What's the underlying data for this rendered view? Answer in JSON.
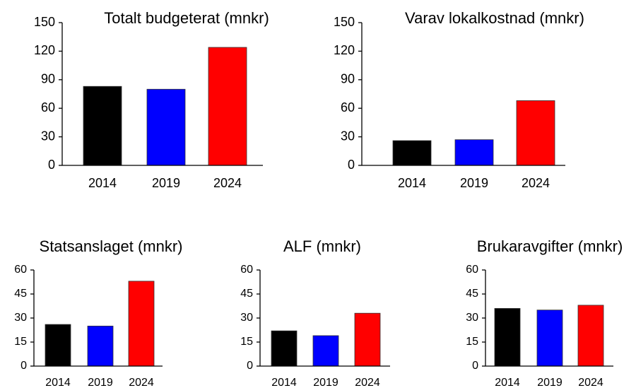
{
  "chart_data": [
    {
      "type": "bar",
      "title": "Totalt budgeterat (mnkr)",
      "categories": [
        "2014",
        "2019",
        "2024"
      ],
      "values": [
        83,
        80,
        124
      ],
      "colors": [
        "#000000",
        "#0000ff",
        "#ff0000"
      ],
      "ylim": [
        0,
        150
      ],
      "yticks": [
        0,
        30,
        60,
        90,
        120,
        150
      ]
    },
    {
      "type": "bar",
      "title": "Varav lokalkostnad (mnkr)",
      "categories": [
        "2014",
        "2019",
        "2024"
      ],
      "values": [
        26,
        27,
        68
      ],
      "colors": [
        "#000000",
        "#0000ff",
        "#ff0000"
      ],
      "ylim": [
        0,
        150
      ],
      "yticks": [
        0,
        30,
        60,
        90,
        120,
        150
      ]
    },
    {
      "type": "bar",
      "title": "Statsanslaget (mnkr)",
      "categories": [
        "2014",
        "2019",
        "2024"
      ],
      "values": [
        26,
        25,
        53
      ],
      "colors": [
        "#000000",
        "#0000ff",
        "#ff0000"
      ],
      "ylim": [
        0,
        60
      ],
      "yticks": [
        0,
        15,
        30,
        45,
        60
      ]
    },
    {
      "type": "bar",
      "title": "ALF (mnkr)",
      "categories": [
        "2014",
        "2019",
        "2024"
      ],
      "values": [
        22,
        19,
        33
      ],
      "colors": [
        "#000000",
        "#0000ff",
        "#ff0000"
      ],
      "ylim": [
        0,
        60
      ],
      "yticks": [
        0,
        15,
        30,
        45,
        60
      ]
    },
    {
      "type": "bar",
      "title": "Brukaravgifter (mnkr)",
      "categories": [
        "2014",
        "2019",
        "2024"
      ],
      "values": [
        36,
        35,
        38
      ],
      "colors": [
        "#000000",
        "#0000ff",
        "#ff0000"
      ],
      "ylim": [
        0,
        60
      ],
      "yticks": [
        0,
        15,
        30,
        45,
        60
      ]
    }
  ]
}
